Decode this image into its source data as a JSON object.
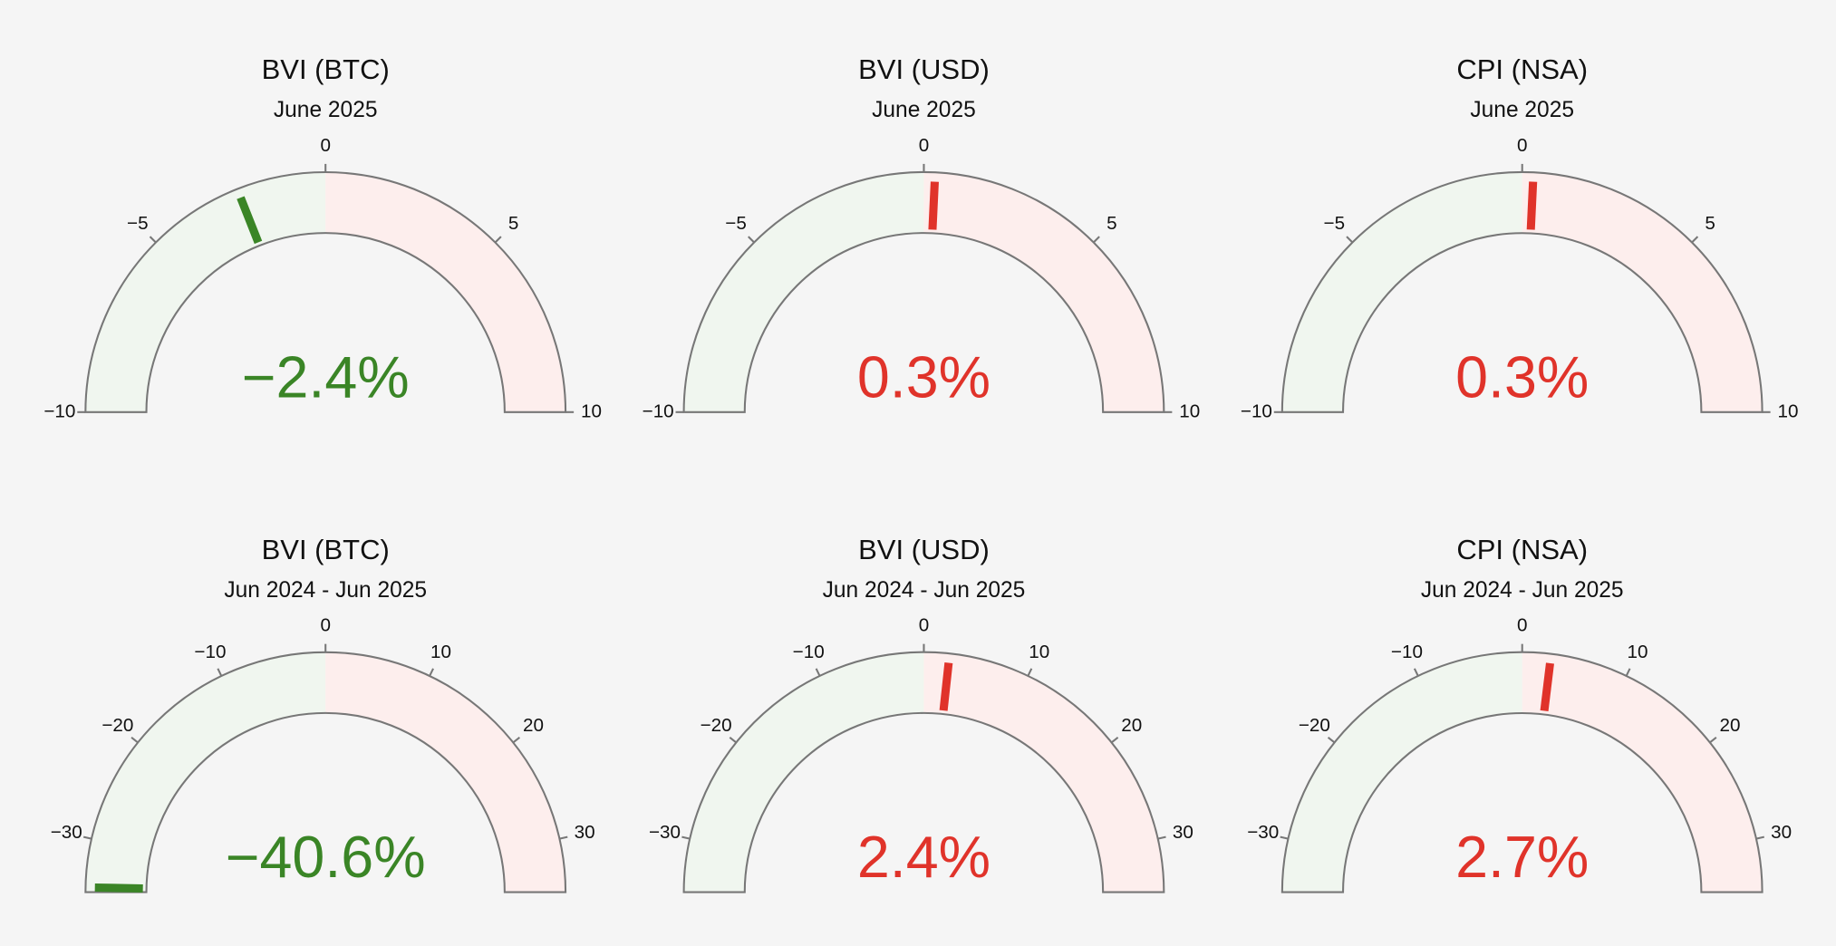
{
  "chart_data": [
    {
      "type": "gauge",
      "title": "BVI (BTC)",
      "subtitle": "June 2025",
      "value": -2.4,
      "value_label": "−2.4%",
      "color": "#3a8526",
      "ylim": [
        -10,
        10
      ],
      "yticks": [
        {
          "value": -10,
          "label": "−10"
        },
        {
          "value": -5,
          "label": "−5"
        },
        0,
        5,
        10
      ]
    },
    {
      "type": "gauge",
      "title": "BVI (USD)",
      "subtitle": "June 2025",
      "value": 0.3,
      "value_label": "0.3%",
      "color": "#e0332a",
      "ylim": [
        -10,
        10
      ],
      "yticks": [
        {
          "value": -10,
          "label": "−10"
        },
        {
          "value": -5,
          "label": "−5"
        },
        0,
        5,
        10
      ]
    },
    {
      "type": "gauge",
      "title": "CPI (NSA)",
      "subtitle": "June 2025",
      "value": 0.3,
      "value_label": "0.3%",
      "color": "#e0332a",
      "ylim": [
        -10,
        10
      ],
      "yticks": [
        {
          "value": -10,
          "label": "−10"
        },
        {
          "value": -5,
          "label": "−5"
        },
        0,
        5,
        10
      ]
    },
    {
      "type": "gauge",
      "title": "BVI (BTC)",
      "subtitle": "Jun 2024 - Jun 2025",
      "value": -40.6,
      "value_label": "−40.6%",
      "color": "#3a8526",
      "ylim": [
        -35,
        35
      ],
      "yticks": [
        {
          "value": -30,
          "label": "−30"
        },
        {
          "value": -20,
          "label": "−20"
        },
        {
          "value": -10,
          "label": "−10"
        },
        0,
        10,
        20,
        30
      ]
    },
    {
      "type": "gauge",
      "title": "BVI (USD)",
      "subtitle": "Jun 2024 - Jun 2025",
      "value": 2.4,
      "value_label": "2.4%",
      "color": "#e0332a",
      "ylim": [
        -35,
        35
      ],
      "yticks": [
        {
          "value": -30,
          "label": "−30"
        },
        {
          "value": -20,
          "label": "−20"
        },
        {
          "value": -10,
          "label": "−10"
        },
        0,
        10,
        20,
        30
      ]
    },
    {
      "type": "gauge",
      "title": "CPI (NSA)",
      "subtitle": "Jun 2024 - Jun 2025",
      "value": 2.7,
      "value_label": "2.7%",
      "color": "#e0332a",
      "ylim": [
        -35,
        35
      ],
      "yticks": [
        {
          "value": -30,
          "label": "−30"
        },
        {
          "value": -20,
          "label": "−20"
        },
        {
          "value": -10,
          "label": "−10"
        },
        0,
        10,
        20,
        30
      ]
    }
  ]
}
